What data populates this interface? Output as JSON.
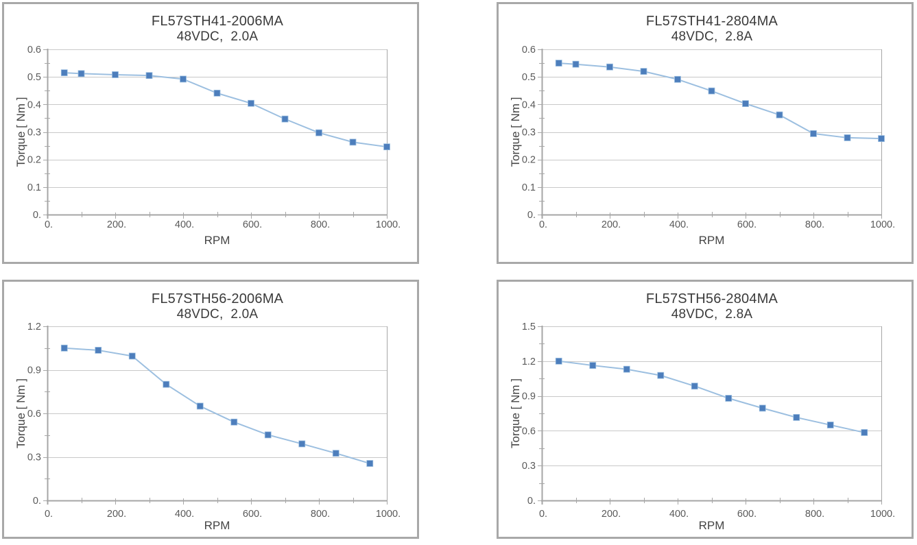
{
  "page": {
    "background": "#ffffff"
  },
  "styles": {
    "panel_border_color": "#a8a8a8",
    "grid_color": "#c8c8c8",
    "axis_color": "#a6a6a6",
    "tick_label_color": "#595959",
    "title_color": "#3b3b3b",
    "line_color": "#9cbfe0",
    "marker_color": "#4d7ebc"
  },
  "chart_data": [
    {
      "type": "line",
      "title": "FL57STH41-2006MA",
      "subtitle": "48VDC,  2.0A",
      "xlabel": "RPM",
      "ylabel": "Torque [ Nm ]",
      "marker": "square",
      "legend": "none",
      "grid": "horizontal-major",
      "x": [
        50,
        100,
        200,
        300,
        400,
        500,
        600,
        700,
        800,
        900,
        1000
      ],
      "y": [
        0.515,
        0.512,
        0.508,
        0.505,
        0.492,
        0.441,
        0.404,
        0.347,
        0.297,
        0.263,
        0.246
      ],
      "xlim": [
        0,
        1000
      ],
      "ylim": [
        0,
        0.6
      ],
      "xticks": [
        0,
        200,
        400,
        600,
        800,
        1000
      ],
      "xtick_labels": [
        "0.",
        "200.",
        "400.",
        "600.",
        "800.",
        "1000."
      ],
      "yticks": [
        0,
        0.1,
        0.2,
        0.3,
        0.4,
        0.5,
        0.6
      ],
      "ytick_labels": [
        "0.",
        "0.1",
        "0.2",
        "0.3",
        "0.4",
        "0.5",
        "0.6"
      ],
      "x_minor_step": 100,
      "y_minor_step": 0.05
    },
    {
      "type": "line",
      "title": "FL57STH41-2804MA",
      "subtitle": "48VDC,  2.8A",
      "xlabel": "RPM",
      "ylabel": "Torque [ Nm ]",
      "marker": "square",
      "legend": "none",
      "grid": "horizontal-major",
      "x": [
        50,
        100,
        200,
        300,
        400,
        500,
        600,
        700,
        800,
        900,
        1000
      ],
      "y": [
        0.55,
        0.546,
        0.536,
        0.52,
        0.491,
        0.449,
        0.403,
        0.362,
        0.294,
        0.279,
        0.276
      ],
      "xlim": [
        0,
        1000
      ],
      "ylim": [
        0,
        0.6
      ],
      "xticks": [
        0,
        200,
        400,
        600,
        800,
        1000
      ],
      "xtick_labels": [
        "0.",
        "200.",
        "400.",
        "600.",
        "800.",
        "1000."
      ],
      "yticks": [
        0,
        0.1,
        0.2,
        0.3,
        0.4,
        0.5,
        0.6
      ],
      "ytick_labels": [
        "0.",
        "0.1",
        "0.2",
        "0.3",
        "0.4",
        "0.5",
        "0.6"
      ],
      "x_minor_step": 100,
      "y_minor_step": 0.05
    },
    {
      "type": "line",
      "title": "FL57STH56-2006MA",
      "subtitle": "48VDC,  2.0A",
      "xlabel": "RPM",
      "ylabel": "Torque [ Nm ]",
      "marker": "square",
      "legend": "none",
      "grid": "horizontal-major",
      "x": [
        50,
        150,
        250,
        350,
        450,
        550,
        650,
        750,
        850,
        950
      ],
      "y": [
        1.05,
        1.035,
        0.995,
        0.8,
        0.65,
        0.54,
        0.452,
        0.39,
        0.325,
        0.255
      ],
      "xlim": [
        0,
        1000
      ],
      "ylim": [
        0,
        1.2
      ],
      "xticks": [
        0,
        200,
        400,
        600,
        800,
        1000
      ],
      "xtick_labels": [
        "0.",
        "200.",
        "400.",
        "600.",
        "800.",
        "1000."
      ],
      "yticks": [
        0,
        0.3,
        0.6,
        0.9,
        1.2
      ],
      "ytick_labels": [
        "0.",
        "0.3",
        "0.6",
        "0.9",
        "1.2"
      ],
      "x_minor_step": 100,
      "y_minor_step": 0.15
    },
    {
      "type": "line",
      "title": "FL57STH56-2804MA",
      "subtitle": "48VDC,  2.8A",
      "xlabel": "RPM",
      "ylabel": "Torque [ Nm ]",
      "marker": "square",
      "legend": "none",
      "grid": "horizontal-major",
      "x": [
        50,
        150,
        250,
        350,
        450,
        550,
        650,
        750,
        850,
        950
      ],
      "y": [
        1.2,
        1.163,
        1.13,
        1.077,
        0.985,
        0.88,
        0.795,
        0.715,
        0.65,
        0.585
      ],
      "xlim": [
        0,
        1000
      ],
      "ylim": [
        0,
        1.5
      ],
      "xticks": [
        0,
        200,
        400,
        600,
        800,
        1000
      ],
      "xtick_labels": [
        "0.",
        "200.",
        "400.",
        "600.",
        "800.",
        "1000."
      ],
      "yticks": [
        0,
        0.3,
        0.6,
        0.9,
        1.2,
        1.5
      ],
      "ytick_labels": [
        "0.",
        "0.3",
        "0.6",
        "0.9",
        "1.2",
        "1.5"
      ],
      "x_minor_step": 100,
      "y_minor_step": 0.15
    }
  ]
}
